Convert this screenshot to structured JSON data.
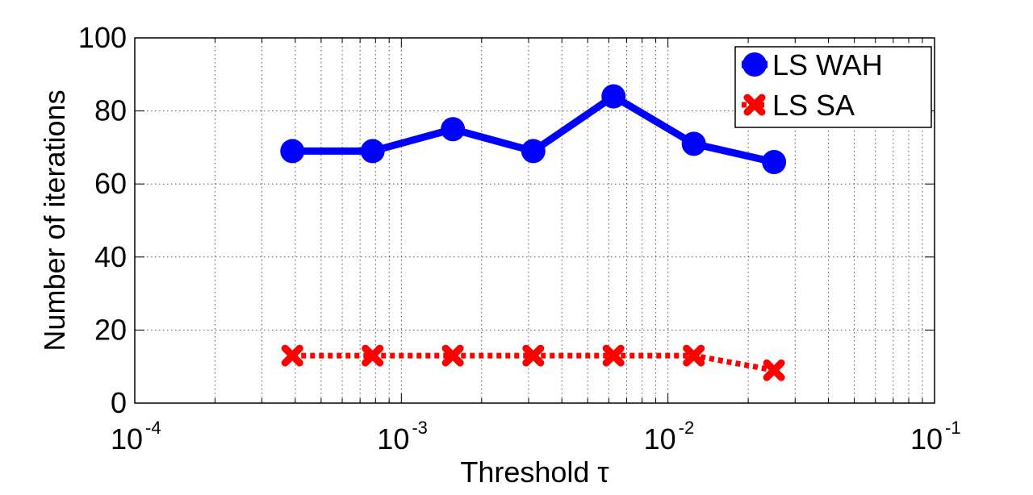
{
  "chart_data": {
    "type": "line",
    "title": "",
    "xlabel": "Threshold τ",
    "ylabel": "Number of iterations",
    "x_scale": "log",
    "xlim": [
      0.0001,
      0.1
    ],
    "ylim": [
      0,
      100
    ],
    "x_ticks": [
      {
        "value": 0.0001,
        "base": "10",
        "exp": "-4"
      },
      {
        "value": 0.001,
        "base": "10",
        "exp": "-3"
      },
      {
        "value": 0.01,
        "base": "10",
        "exp": "-2"
      },
      {
        "value": 0.1,
        "base": "10",
        "exp": "-1"
      }
    ],
    "y_ticks": [
      "0",
      "20",
      "40",
      "60",
      "80",
      "100"
    ],
    "grid": true,
    "legend_position": "top-right",
    "x": [
      0.00039,
      0.00078,
      0.00156,
      0.003125,
      0.00625,
      0.0125,
      0.025
    ],
    "series": [
      {
        "name": "LS WAH",
        "color": "#0000ff",
        "marker": "circle",
        "line_style": "solid",
        "values": [
          69,
          69,
          75,
          69,
          84,
          71,
          66
        ]
      },
      {
        "name": "LS SA",
        "color": "#ff0000",
        "marker": "x",
        "line_style": "dotted",
        "values": [
          13,
          13,
          13,
          13,
          13,
          13,
          9
        ]
      }
    ]
  }
}
